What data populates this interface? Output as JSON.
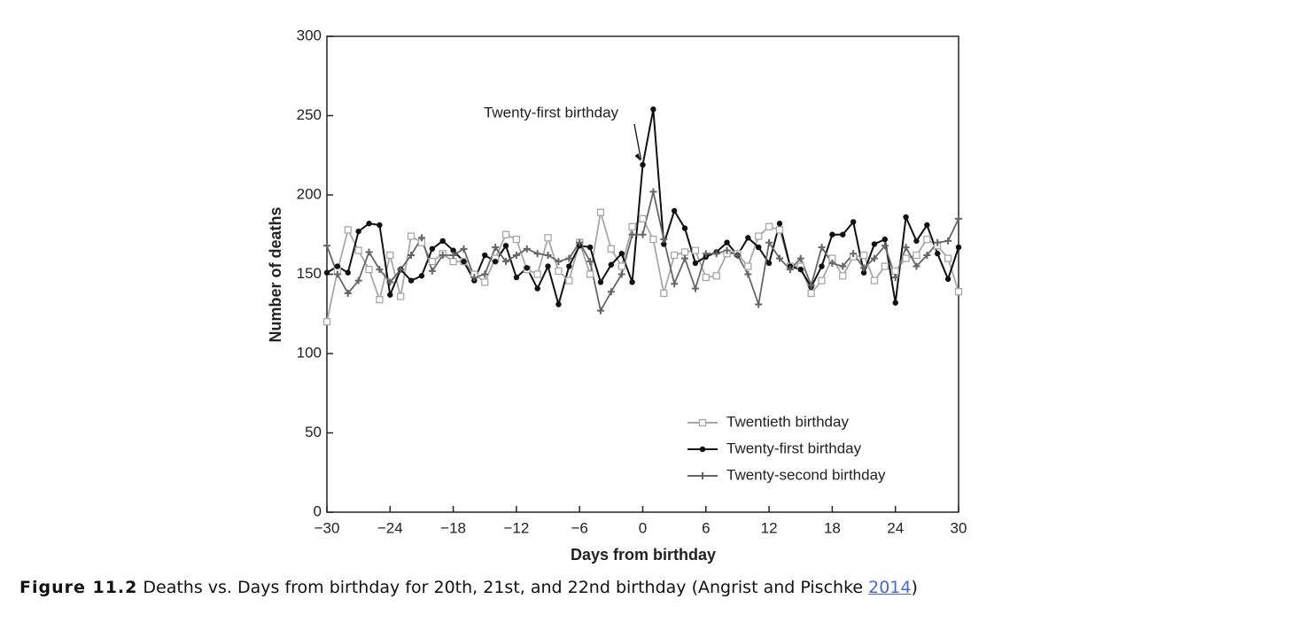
{
  "chart_data": {
    "type": "line",
    "xlabel": "Days from birthday",
    "ylabel": "Number of deaths",
    "annotation": "Twenty-first birthday",
    "x": [
      -30,
      -29,
      -28,
      -27,
      -26,
      -25,
      -24,
      -23,
      -22,
      -21,
      -20,
      -19,
      -18,
      -17,
      -16,
      -15,
      -14,
      -13,
      -12,
      -11,
      -10,
      -9,
      -8,
      -7,
      -6,
      -5,
      -4,
      -3,
      -2,
      -1,
      0,
      1,
      2,
      3,
      4,
      5,
      6,
      7,
      8,
      9,
      10,
      11,
      12,
      13,
      14,
      15,
      16,
      17,
      18,
      19,
      20,
      21,
      22,
      23,
      24,
      25,
      26,
      27,
      28,
      29,
      30
    ],
    "series": [
      {
        "name": "Twentieth birthday",
        "color": "#a8a8a8",
        "marker": "square",
        "values": [
          120,
          152,
          178,
          165,
          153,
          134,
          162,
          136,
          174,
          170,
          158,
          163,
          158,
          158,
          150,
          145,
          160,
          175,
          172,
          153,
          150,
          173,
          152,
          146,
          170,
          150,
          189,
          166,
          155,
          180,
          185,
          172,
          138,
          162,
          164,
          165,
          148,
          149,
          163,
          163,
          155,
          174,
          180,
          178,
          155,
          155,
          138,
          146,
          160,
          149,
          161,
          162,
          146,
          155,
          152,
          160,
          162,
          172,
          168,
          160,
          139
        ]
      },
      {
        "name": "Twenty-first birthday",
        "color": "#111111",
        "marker": "circle",
        "values": [
          151,
          155,
          151,
          177,
          182,
          181,
          137,
          153,
          146,
          149,
          166,
          171,
          165,
          158,
          146,
          162,
          158,
          168,
          148,
          154,
          141,
          155,
          131,
          155,
          168,
          167,
          145,
          156,
          163,
          145,
          219,
          254,
          169,
          190,
          179,
          157,
          161,
          164,
          170,
          162,
          173,
          167,
          157,
          182,
          155,
          153,
          142,
          155,
          175,
          175,
          183,
          151,
          169,
          172,
          132,
          186,
          171,
          181,
          163,
          147,
          167
        ]
      },
      {
        "name": "Twenty-second birthday",
        "color": "#666666",
        "marker": "plus",
        "values": [
          168,
          150,
          138,
          146,
          164,
          153,
          145,
          153,
          162,
          173,
          152,
          162,
          162,
          166,
          148,
          150,
          167,
          158,
          162,
          166,
          163,
          162,
          158,
          160,
          170,
          158,
          127,
          139,
          150,
          175,
          175,
          202,
          172,
          144,
          160,
          141,
          163,
          163,
          165,
          162,
          150,
          131,
          170,
          160,
          153,
          160,
          143,
          167,
          157,
          155,
          163,
          154,
          160,
          168,
          148,
          167,
          155,
          162,
          170,
          171,
          185
        ]
      }
    ],
    "xlim": [
      -30,
      30
    ],
    "xticks": [
      {
        "value": -30,
        "label": "−30"
      },
      {
        "value": -24,
        "label": "−24"
      },
      {
        "value": -18,
        "label": "−18"
      },
      {
        "value": -12,
        "label": "−12"
      },
      {
        "value": -6,
        "label": "−6"
      },
      0,
      6,
      12,
      18,
      24,
      30
    ],
    "ylim": [
      0,
      300
    ],
    "yticks": [
      0,
      50,
      100,
      150,
      200,
      250,
      300
    ],
    "legend": "lower right"
  },
  "caption": {
    "label": "Figure 11.2",
    "text": "Deaths vs. Days from birthday for 20th, 21st, and 22nd birthday (Angrist and Pischke ",
    "link": "2014",
    "close": ")"
  }
}
